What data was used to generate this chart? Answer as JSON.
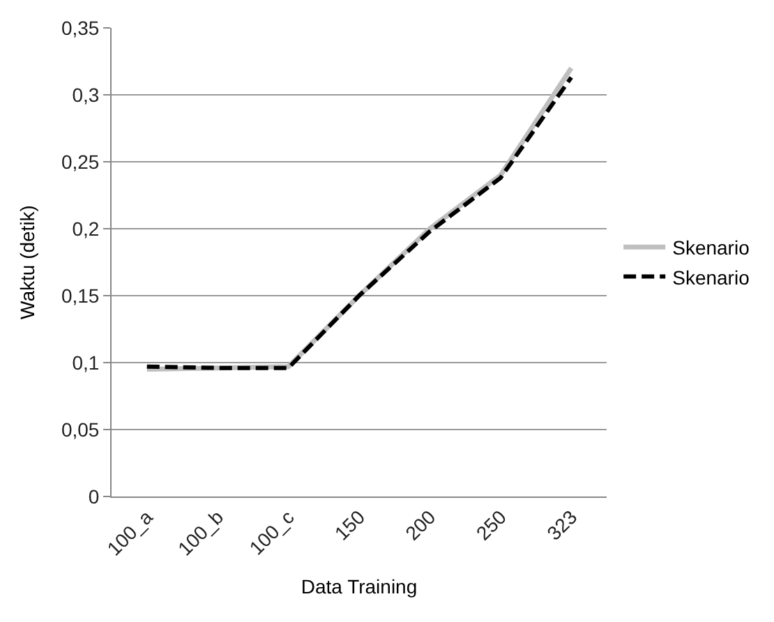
{
  "chart_data": {
    "type": "line",
    "xlabel": "Data Training",
    "ylabel": "Waktu (detik)",
    "categories": [
      "100_a",
      "100_b",
      "100_c",
      "150",
      "200",
      "250",
      "323"
    ],
    "series": [
      {
        "name": "Skenario",
        "color": "#bfbfbf",
        "line_style": "solid",
        "values": [
          0.095,
          0.096,
          0.097,
          0.15,
          0.2,
          0.24,
          0.32
        ]
      },
      {
        "name": "Skenario",
        "color": "#000000",
        "line_style": "dashed",
        "values": [
          0.097,
          0.096,
          0.096,
          0.15,
          0.198,
          0.238,
          0.313
        ]
      }
    ],
    "ylim": [
      0,
      0.35
    ],
    "yticks": [
      0,
      {
        "value": 0.05,
        "label": "0,05"
      },
      {
        "value": 0.1,
        "label": "0,1"
      },
      {
        "value": 0.15,
        "label": "0,15"
      },
      {
        "value": 0.2,
        "label": "0,2"
      },
      {
        "value": 0.25,
        "label": "0,25"
      },
      {
        "value": 0.3,
        "label": "0,3"
      },
      {
        "value": 0.35,
        "label": "0,35"
      }
    ],
    "grid": "y",
    "legend": "right",
    "marker": "none"
  }
}
